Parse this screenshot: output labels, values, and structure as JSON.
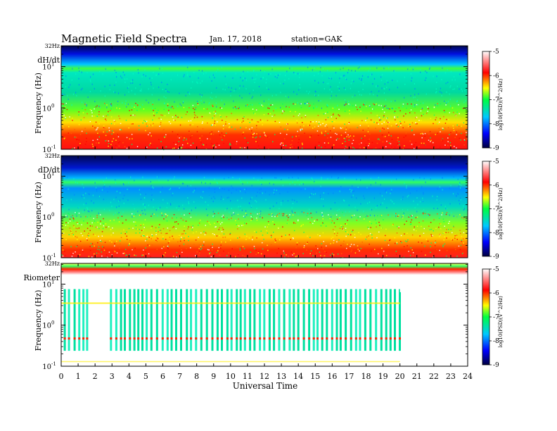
{
  "header": {
    "title": "Magnetic Field Spectra",
    "date": "Jan. 17, 2018",
    "station": "station=GAK"
  },
  "chart_data": [
    {
      "type": "heatmap",
      "panel_label": "dH/dt",
      "top_label": "32Hz",
      "ylabel": "Frequency (Hz)",
      "y_scale": "log",
      "ylim": [
        0.1,
        32
      ],
      "y_ticks": [
        "10^1",
        "10^0",
        "10^-1"
      ],
      "xlim": [
        0,
        24
      ],
      "colorbar": {
        "label": "log10(PSD)(V^2/Hz)",
        "min": -9,
        "max": -5,
        "ticks": [
          "-5",
          "-6",
          "-7",
          "-8",
          "-9"
        ]
      }
    },
    {
      "type": "heatmap",
      "panel_label": "dD/dt",
      "top_label": "32Hz",
      "ylabel": "Frequency (Hz)",
      "y_scale": "log",
      "ylim": [
        0.1,
        32
      ],
      "y_ticks": [
        "10^1",
        "10^0",
        "10^-1"
      ],
      "xlim": [
        0,
        24
      ],
      "colorbar": {
        "label": "log10(PSD)(V^2/Hz)",
        "min": -9,
        "max": -5,
        "ticks": [
          "-5",
          "-6",
          "-7",
          "-8",
          "-9"
        ]
      }
    },
    {
      "type": "heatmap",
      "panel_label": "Riometer",
      "top_label": "32Hz",
      "ylabel": "Frequency (Hz)",
      "y_scale": "log",
      "ylim": [
        0.1,
        32
      ],
      "y_ticks": [
        "10^1",
        "10^0",
        "10^-1"
      ],
      "xlim": [
        0,
        24
      ],
      "colorbar": {
        "label": "log10(PSD)(V^2/Hz)",
        "min": -9,
        "max": -5,
        "ticks": [
          "-5",
          "-6",
          "-7",
          "-8",
          "-9"
        ]
      }
    }
  ],
  "x_axis": {
    "label": "Universal Time",
    "ticks": [
      "0",
      "1",
      "2",
      "3",
      "4",
      "5",
      "6",
      "7",
      "8",
      "9",
      "10",
      "11",
      "12",
      "13",
      "14",
      "15",
      "16",
      "17",
      "18",
      "19",
      "20",
      "21",
      "22",
      "23",
      "24"
    ]
  }
}
